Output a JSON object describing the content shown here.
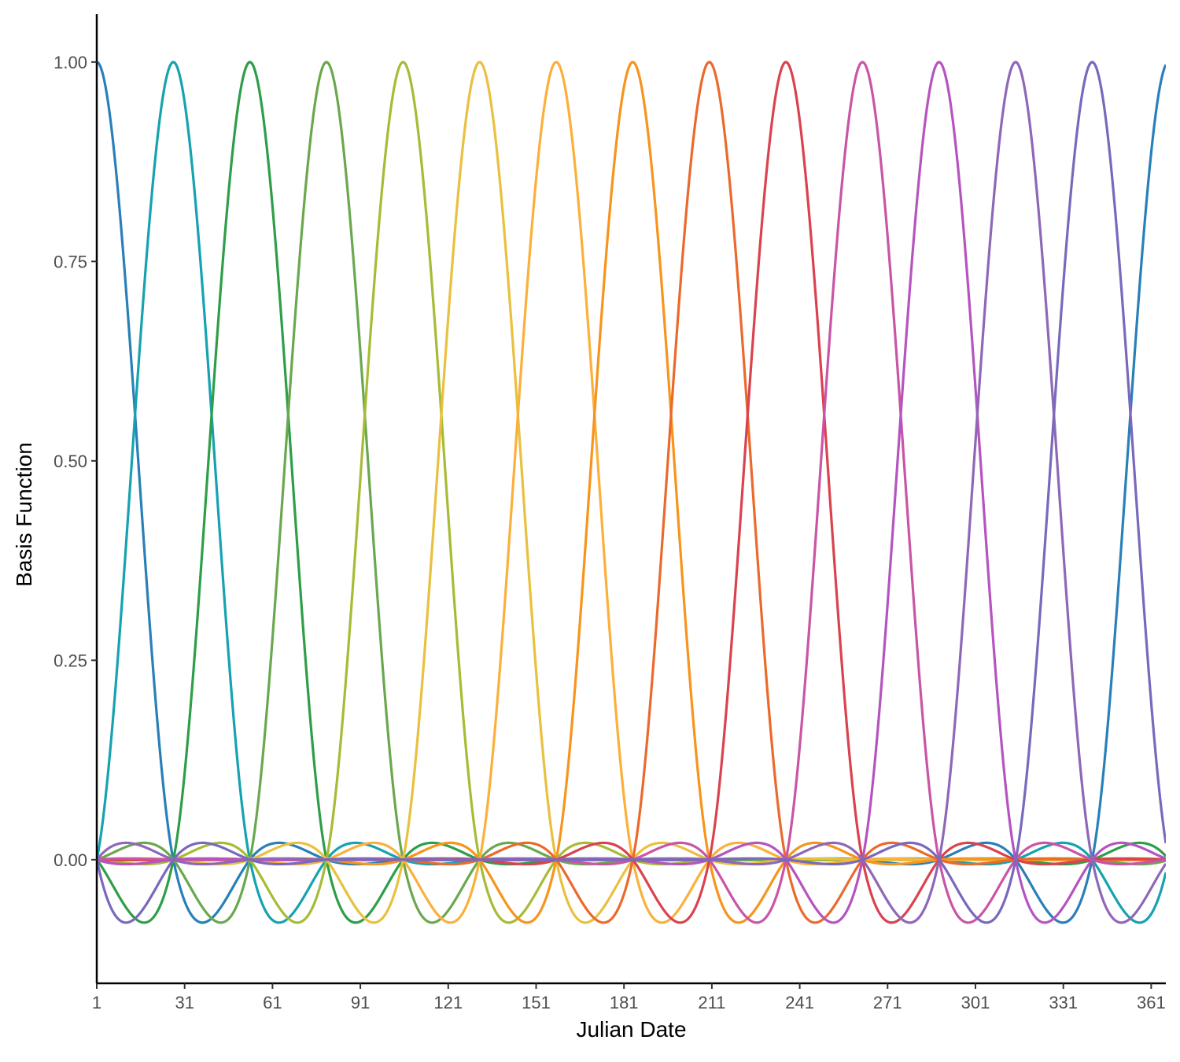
{
  "chart_data": {
    "type": "line",
    "title": "",
    "xlabel": "Julian Date",
    "ylabel": "Basis Function",
    "xlim": [
      1,
      366
    ],
    "ylim": [
      -0.155,
      1.06
    ],
    "x_ticks": [
      1,
      31,
      61,
      91,
      121,
      151,
      181,
      211,
      241,
      271,
      301,
      331,
      361
    ],
    "x_tick_labels": [
      "1",
      "31",
      "61",
      "91",
      "121",
      "151",
      "181",
      "211",
      "241",
      "271",
      "301",
      "331",
      "361"
    ],
    "y_ticks": [
      0.0,
      0.25,
      0.5,
      0.75,
      1.0
    ],
    "y_tick_labels": [
      "0.00",
      "0.25",
      "0.50",
      "0.75",
      "1.00"
    ],
    "grid": false,
    "legend": "none",
    "description_of_series": "14 periodic cardinal cubic spline basis functions, knots every 26.14 days",
    "knot_spacing": 26.14,
    "series": [
      {
        "peak_x": 1,
        "color": "#2980b9"
      },
      {
        "peak_x": 27.14,
        "color": "#16a2b0"
      },
      {
        "peak_x": 53.29,
        "color": "#2e9e48"
      },
      {
        "peak_x": 79.43,
        "color": "#6aa84f"
      },
      {
        "peak_x": 105.57,
        "color": "#a8bb35"
      },
      {
        "peak_x": 131.71,
        "color": "#e9c03f"
      },
      {
        "peak_x": 157.86,
        "color": "#fbb03b"
      },
      {
        "peak_x": 184.0,
        "color": "#f7941d"
      },
      {
        "peak_x": 210.14,
        "color": "#ea6a2c"
      },
      {
        "peak_x": 236.29,
        "color": "#d9434f"
      },
      {
        "peak_x": 262.43,
        "color": "#c955a6"
      },
      {
        "peak_x": 288.57,
        "color": "#b554c0"
      },
      {
        "peak_x": 314.71,
        "color": "#8e68b7"
      },
      {
        "peak_x": 340.86,
        "color": "#7a68bd"
      }
    ]
  }
}
